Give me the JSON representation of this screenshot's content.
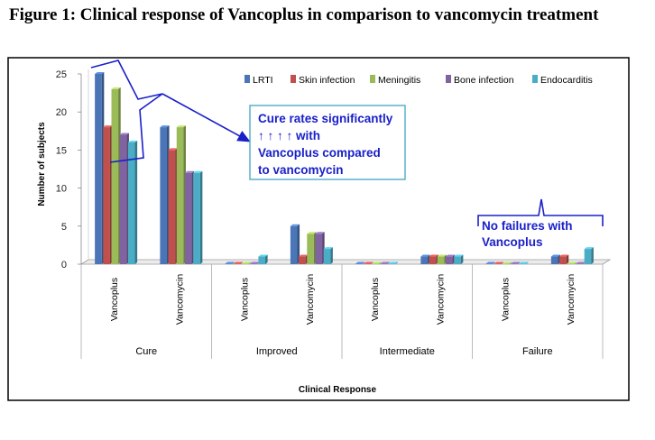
{
  "figure": {
    "title": "Figure 1: Clinical response of Vancoplus in comparison to vancomycin treatment"
  },
  "chart_data": {
    "type": "bar",
    "ylabel": "Number of subjects",
    "xlabel": "Clinical Response",
    "ylim": [
      0,
      25
    ],
    "yticks": [
      0,
      5,
      10,
      15,
      20,
      25
    ],
    "grid": false,
    "legend_position": "top-right",
    "groups": [
      {
        "label": "Cure",
        "categories": [
          "Vancoplus",
          "Vancomycin"
        ]
      },
      {
        "label": "Improved",
        "categories": [
          "Vancoplus",
          "Vancomycin"
        ]
      },
      {
        "label": "Intermediate",
        "categories": [
          "Vancoplus",
          "Vancomycin"
        ]
      },
      {
        "label": "Failure",
        "categories": [
          "Vancoplus",
          "Vancomycin"
        ]
      }
    ],
    "series": [
      {
        "name": "LRTI",
        "color": "#4a76b8",
        "values": [
          25,
          18,
          0,
          5,
          0,
          1,
          0,
          1
        ]
      },
      {
        "name": "Skin infection",
        "color": "#c0504d",
        "values": [
          18,
          15,
          0,
          1,
          0,
          1,
          0,
          1
        ]
      },
      {
        "name": "Meningitis",
        "color": "#9bbb59",
        "values": [
          23,
          18,
          0,
          4,
          0,
          1,
          0,
          0
        ]
      },
      {
        "name": "Bone infection",
        "color": "#8064a2",
        "values": [
          17,
          12,
          0,
          4,
          0,
          1,
          0,
          0
        ]
      },
      {
        "name": "Endocarditis",
        "color": "#4bacc6",
        "values": [
          16,
          12,
          1,
          2,
          0,
          1,
          0,
          2
        ]
      }
    ],
    "annotations": [
      {
        "lines": [
          "Cure rates significantly",
          "↑ ↑ ↑ ↑ with",
          "Vancoplus compared",
          "to vancomycin"
        ]
      },
      {
        "lines": [
          "No failures with",
          "Vancoplus"
        ]
      }
    ]
  }
}
